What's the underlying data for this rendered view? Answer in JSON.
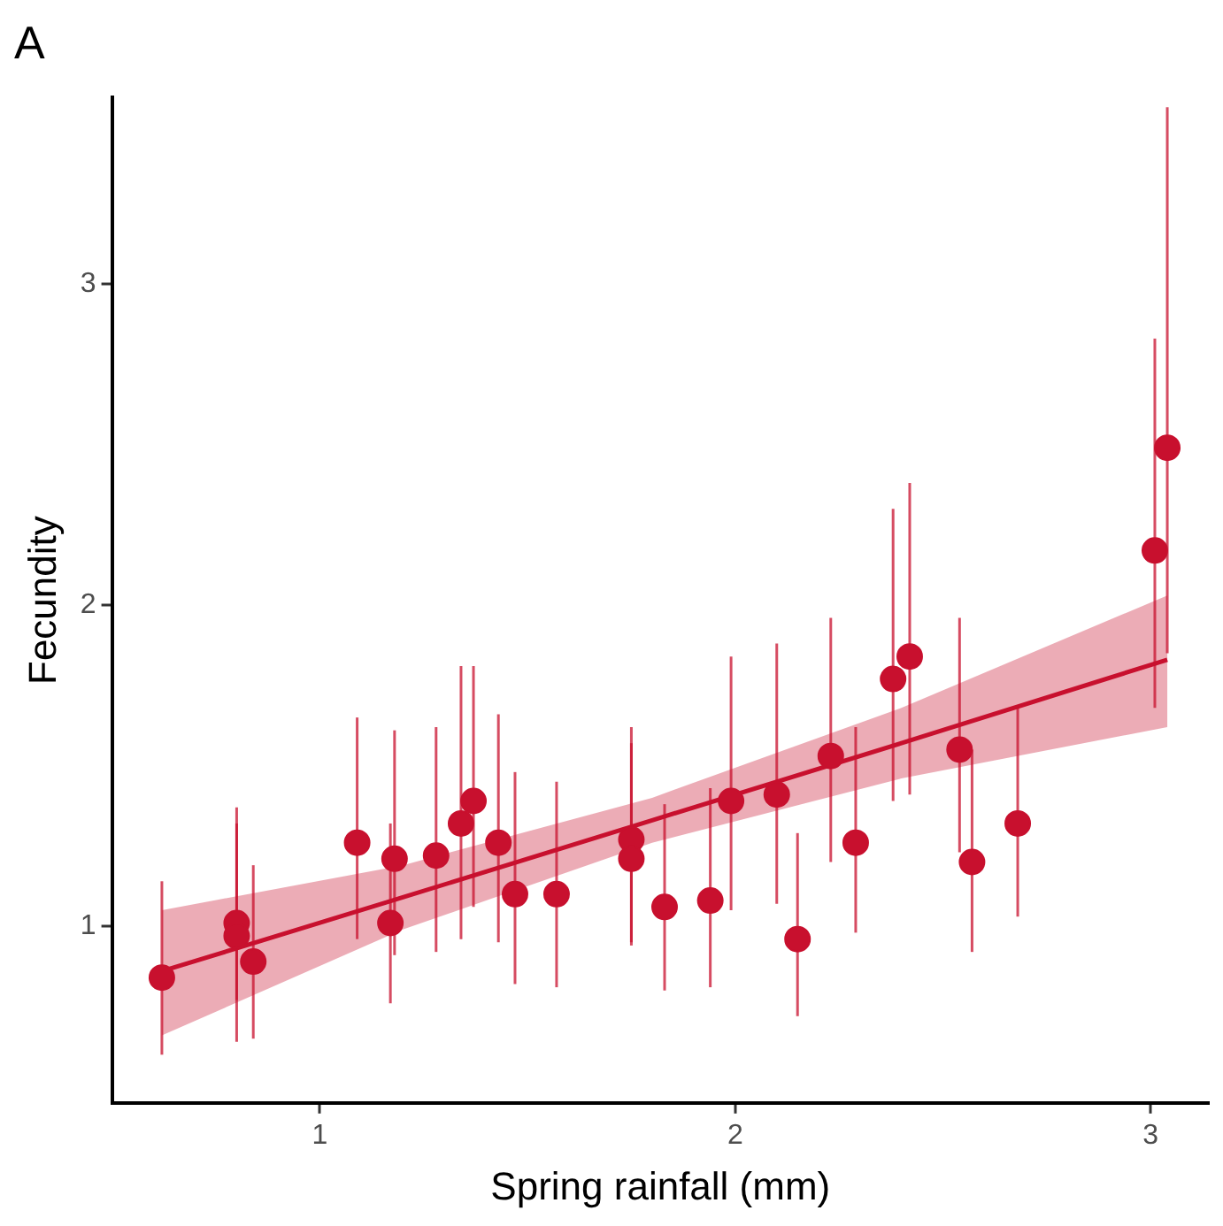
{
  "chart_data": {
    "type": "scatter",
    "title": "A",
    "xlabel": "Spring rainfall (mm)",
    "ylabel": "Fecundity",
    "xlim": [
      0.5,
      3.14
    ],
    "ylim": [
      0.45,
      3.58
    ],
    "xticks": [
      1,
      2,
      3
    ],
    "yticks": [
      1,
      2,
      3
    ],
    "grid": false,
    "legend": false,
    "marker": "circle",
    "series": [
      {
        "color": "#c8102e",
        "x": [
          0.62,
          0.8,
          0.8,
          0.84,
          1.09,
          1.17,
          1.18,
          1.28,
          1.34,
          1.37,
          1.43,
          1.47,
          1.57,
          1.75,
          1.75,
          1.83,
          1.94,
          1.99,
          2.1,
          2.15,
          2.23,
          2.29,
          2.38,
          2.42,
          2.54,
          2.57,
          2.68,
          3.01,
          3.04
        ],
        "values": [
          0.84,
          1.01,
          0.97,
          0.89,
          1.26,
          1.01,
          1.21,
          1.22,
          1.32,
          1.39,
          1.26,
          1.1,
          1.1,
          1.27,
          1.21,
          1.06,
          1.08,
          1.39,
          1.41,
          0.96,
          1.53,
          1.26,
          1.77,
          1.84,
          1.55,
          1.2,
          1.32,
          2.17,
          2.49
        ],
        "errors": [
          [
            0.6,
            1.14
          ],
          [
            0.64,
            1.37
          ],
          [
            0.77,
            1.32
          ],
          [
            0.65,
            1.19
          ],
          [
            0.96,
            1.65
          ],
          [
            0.76,
            1.32
          ],
          [
            0.91,
            1.61
          ],
          [
            0.92,
            1.62
          ],
          [
            0.96,
            1.81
          ],
          [
            1.06,
            1.81
          ],
          [
            0.95,
            1.66
          ],
          [
            0.82,
            1.48
          ],
          [
            0.81,
            1.45
          ],
          [
            0.95,
            1.62
          ],
          [
            0.94,
            1.57
          ],
          [
            0.8,
            1.38
          ],
          [
            0.81,
            1.43
          ],
          [
            1.05,
            1.84
          ],
          [
            1.07,
            1.88
          ],
          [
            0.72,
            1.29
          ],
          [
            1.2,
            1.96
          ],
          [
            0.98,
            1.62
          ],
          [
            1.39,
            2.3
          ],
          [
            1.41,
            2.38
          ],
          [
            1.23,
            1.96
          ],
          [
            0.92,
            1.55
          ],
          [
            1.03,
            1.68
          ],
          [
            1.68,
            2.83
          ],
          [
            1.85,
            3.55
          ]
        ]
      },
      {
        "type": "line",
        "marker": "none",
        "color": "#c8102e",
        "x": [
          0.62,
          1.2,
          1.8,
          2.4,
          3.04
        ],
        "values": [
          0.86,
          1.09,
          1.33,
          1.57,
          1.83
        ],
        "lower": [
          0.66,
          0.99,
          1.26,
          1.46,
          1.62
        ],
        "upper": [
          1.05,
          1.19,
          1.4,
          1.68,
          2.03
        ]
      }
    ]
  }
}
